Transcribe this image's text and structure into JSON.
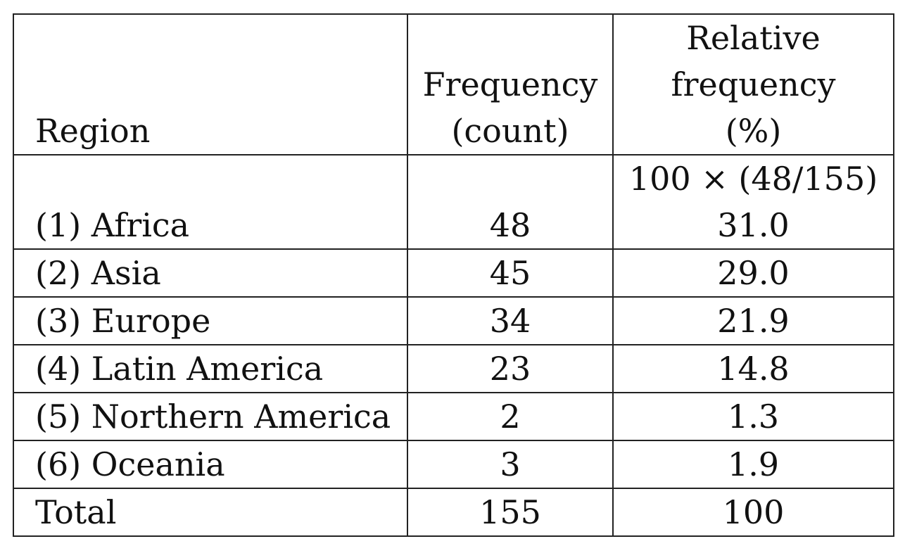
{
  "chart_data": {
    "type": "table",
    "columns": [
      "Region",
      "Frequency (count)",
      "Relative frequency (%)"
    ],
    "header": {
      "region": "Region",
      "count_line1": "Frequency",
      "count_line2": "(count)",
      "rel_line1": "Relative",
      "rel_line2": "frequency",
      "rel_line3": "(%)"
    },
    "formula_note": "100 × (48/155)",
    "rows": [
      {
        "region": "(1) Africa",
        "count": "48",
        "relative": "31.0"
      },
      {
        "region": "(2) Asia",
        "count": "45",
        "relative": "29.0"
      },
      {
        "region": "(3) Europe",
        "count": "34",
        "relative": "21.9"
      },
      {
        "region": "(4) Latin America",
        "count": "23",
        "relative": "14.8"
      },
      {
        "region": "(5) Northern America",
        "count": "2",
        "relative": "1.3"
      },
      {
        "region": "(6) Oceania",
        "count": "3",
        "relative": "1.9"
      }
    ],
    "total": {
      "region": "Total",
      "count": "155",
      "relative": "100"
    }
  }
}
